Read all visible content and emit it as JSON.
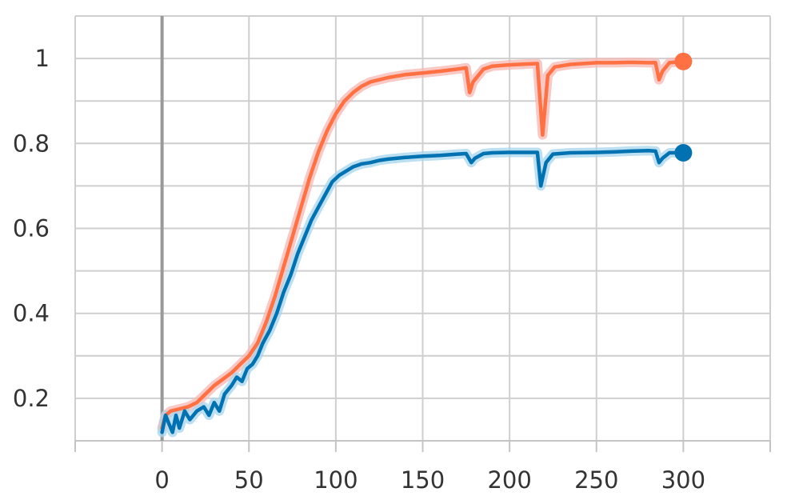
{
  "chart_data": {
    "type": "line",
    "title": "",
    "xlabel": "",
    "ylabel": "",
    "xlim": [
      -50,
      350
    ],
    "ylim": [
      0.1,
      1.1
    ],
    "x_ticks": [
      0,
      50,
      100,
      150,
      200,
      250,
      300
    ],
    "x_tick_labels": [
      "0",
      "50",
      "100",
      "150",
      "200",
      "250",
      "300"
    ],
    "y_ticks": [
      0.2,
      0.4,
      0.6,
      0.8,
      1.0
    ],
    "y_tick_labels": [
      "0.2",
      "0.4",
      "0.6",
      "0.8",
      "1"
    ],
    "y_minor_grid": [
      0.1,
      0.3,
      0.5,
      0.7,
      0.9,
      1.1
    ],
    "grid": true,
    "legend": "none",
    "series": [
      {
        "color": "#ff7043",
        "band_color": "#f5b7b1",
        "points": [
          [
            0,
            0.13
          ],
          [
            2,
            0.16
          ],
          [
            5,
            0.17
          ],
          [
            10,
            0.175
          ],
          [
            15,
            0.18
          ],
          [
            20,
            0.19
          ],
          [
            25,
            0.21
          ],
          [
            30,
            0.23
          ],
          [
            35,
            0.245
          ],
          [
            40,
            0.26
          ],
          [
            45,
            0.28
          ],
          [
            50,
            0.3
          ],
          [
            55,
            0.33
          ],
          [
            60,
            0.38
          ],
          [
            65,
            0.44
          ],
          [
            70,
            0.51
          ],
          [
            75,
            0.58
          ],
          [
            80,
            0.65
          ],
          [
            85,
            0.72
          ],
          [
            90,
            0.78
          ],
          [
            95,
            0.83
          ],
          [
            100,
            0.87
          ],
          [
            105,
            0.9
          ],
          [
            110,
            0.92
          ],
          [
            115,
            0.935
          ],
          [
            120,
            0.945
          ],
          [
            125,
            0.95
          ],
          [
            130,
            0.955
          ],
          [
            140,
            0.962
          ],
          [
            150,
            0.966
          ],
          [
            160,
            0.97
          ],
          [
            170,
            0.975
          ],
          [
            175,
            0.978
          ],
          [
            177,
            0.92
          ],
          [
            179,
            0.945
          ],
          [
            185,
            0.975
          ],
          [
            190,
            0.982
          ],
          [
            200,
            0.985
          ],
          [
            210,
            0.987
          ],
          [
            216,
            0.988
          ],
          [
            219,
            0.82
          ],
          [
            222,
            0.96
          ],
          [
            226,
            0.98
          ],
          [
            235,
            0.986
          ],
          [
            250,
            0.99
          ],
          [
            260,
            0.99
          ],
          [
            270,
            0.991
          ],
          [
            280,
            0.99
          ],
          [
            284,
            0.99
          ],
          [
            286,
            0.95
          ],
          [
            288,
            0.97
          ],
          [
            292,
            0.99
          ],
          [
            300,
            0.993
          ]
        ]
      },
      {
        "color": "#0072b2",
        "band_color": "#a6d4ee",
        "points": [
          [
            0,
            0.12
          ],
          [
            2,
            0.16
          ],
          [
            4,
            0.14
          ],
          [
            6,
            0.12
          ],
          [
            8,
            0.16
          ],
          [
            10,
            0.13
          ],
          [
            13,
            0.17
          ],
          [
            16,
            0.15
          ],
          [
            20,
            0.17
          ],
          [
            24,
            0.18
          ],
          [
            27,
            0.16
          ],
          [
            30,
            0.19
          ],
          [
            33,
            0.17
          ],
          [
            36,
            0.21
          ],
          [
            40,
            0.23
          ],
          [
            43,
            0.25
          ],
          [
            46,
            0.24
          ],
          [
            49,
            0.27
          ],
          [
            52,
            0.28
          ],
          [
            55,
            0.3
          ],
          [
            58,
            0.33
          ],
          [
            62,
            0.36
          ],
          [
            66,
            0.4
          ],
          [
            70,
            0.45
          ],
          [
            74,
            0.49
          ],
          [
            78,
            0.54
          ],
          [
            82,
            0.58
          ],
          [
            86,
            0.62
          ],
          [
            90,
            0.65
          ],
          [
            94,
            0.68
          ],
          [
            98,
            0.71
          ],
          [
            102,
            0.725
          ],
          [
            106,
            0.735
          ],
          [
            110,
            0.745
          ],
          [
            115,
            0.752
          ],
          [
            120,
            0.755
          ],
          [
            125,
            0.76
          ],
          [
            130,
            0.763
          ],
          [
            140,
            0.767
          ],
          [
            150,
            0.77
          ],
          [
            160,
            0.772
          ],
          [
            170,
            0.775
          ],
          [
            175,
            0.776
          ],
          [
            178,
            0.755
          ],
          [
            180,
            0.765
          ],
          [
            185,
            0.776
          ],
          [
            190,
            0.778
          ],
          [
            200,
            0.779
          ],
          [
            210,
            0.779
          ],
          [
            216,
            0.779
          ],
          [
            218,
            0.7
          ],
          [
            221,
            0.755
          ],
          [
            225,
            0.775
          ],
          [
            235,
            0.778
          ],
          [
            250,
            0.779
          ],
          [
            260,
            0.78
          ],
          [
            270,
            0.782
          ],
          [
            280,
            0.783
          ],
          [
            284,
            0.782
          ],
          [
            286,
            0.755
          ],
          [
            288,
            0.765
          ],
          [
            292,
            0.778
          ],
          [
            300,
            0.778
          ]
        ]
      }
    ]
  }
}
